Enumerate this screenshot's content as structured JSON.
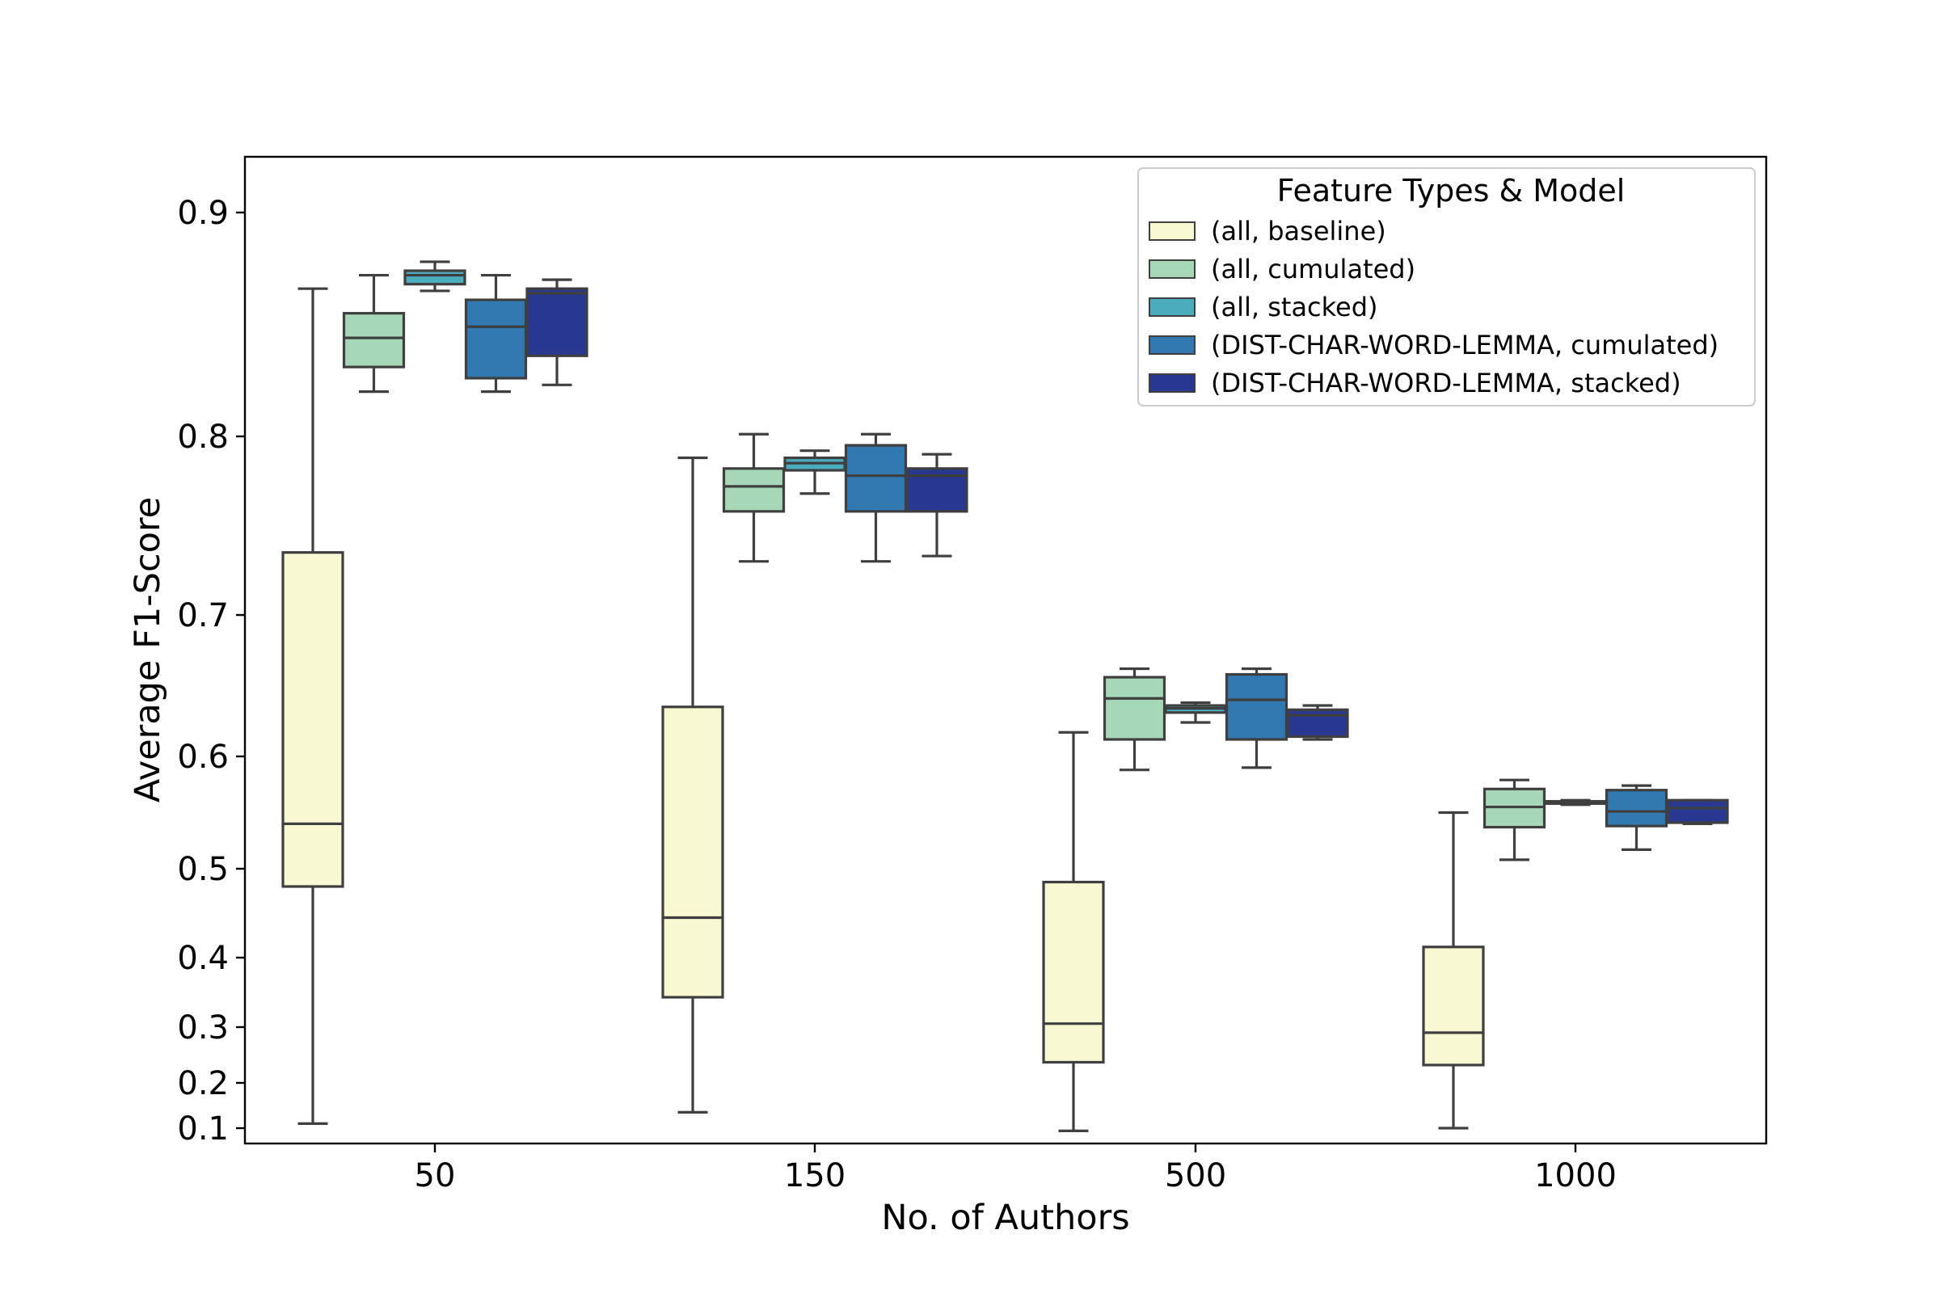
{
  "chart_data": {
    "type": "box",
    "xlabel": "No. of Authors",
    "ylabel": "Average F1-Score",
    "categories": [
      "50",
      "150",
      "500",
      "1000"
    ],
    "y_scale": "nonlinear (ticks unevenly spaced, compressed toward bottom)",
    "y_ticks": [
      0.1,
      0.2,
      0.3,
      0.4,
      0.5,
      0.6,
      0.7,
      0.8,
      0.9
    ],
    "y_tick_labels": [
      "0.1",
      "0.2",
      "0.3",
      "0.4",
      "0.5",
      "0.6",
      "0.7",
      "0.8",
      "0.9"
    ],
    "ylim": [
      0.09,
      0.925
    ],
    "grid": false,
    "legend": {
      "title": "Feature Types & Model",
      "position": "top-right"
    },
    "series": [
      {
        "name": "(all, baseline)",
        "color": "#f8f8d3",
        "boxes": [
          {
            "whislo": 0.11,
            "q1": 0.48,
            "med": 0.54,
            "q3": 0.735,
            "whishi": 0.866
          },
          {
            "whislo": 0.135,
            "q1": 0.343,
            "med": 0.445,
            "q3": 0.635,
            "whishi": 0.788
          },
          {
            "whislo": 0.098,
            "q1": 0.237,
            "med": 0.305,
            "q3": 0.485,
            "whishi": 0.617
          },
          {
            "whislo": 0.1,
            "q1": 0.232,
            "med": 0.29,
            "q3": 0.412,
            "whishi": 0.55
          }
        ]
      },
      {
        "name": "(all, cumulated)",
        "color": "#a6d8b7",
        "boxes": [
          {
            "whislo": 0.82,
            "q1": 0.831,
            "med": 0.844,
            "q3": 0.855,
            "whishi": 0.872
          },
          {
            "whislo": 0.73,
            "q1": 0.758,
            "med": 0.772,
            "q3": 0.782,
            "whishi": 0.801
          },
          {
            "whislo": 0.588,
            "q1": 0.612,
            "med": 0.641,
            "q3": 0.656,
            "whishi": 0.662
          },
          {
            "whislo": 0.508,
            "q1": 0.537,
            "med": 0.555,
            "q3": 0.571,
            "whishi": 0.579
          }
        ]
      },
      {
        "name": "(all, stacked)",
        "color": "#4aacbd",
        "boxes": [
          {
            "whislo": 0.865,
            "q1": 0.868,
            "med": 0.872,
            "q3": 0.874,
            "whishi": 0.878
          },
          {
            "whislo": 0.768,
            "q1": 0.781,
            "med": 0.785,
            "q3": 0.788,
            "whishi": 0.792
          },
          {
            "whislo": 0.624,
            "q1": 0.631,
            "med": 0.634,
            "q3": 0.636,
            "whishi": 0.638
          },
          {
            "whislo": 0.557,
            "q1": 0.558,
            "med": 0.559,
            "q3": 0.56,
            "whishi": 0.561
          }
        ]
      },
      {
        "name": "(DIST-CHAR-WORD-LEMMA, cumulated)",
        "color": "#3179b0",
        "boxes": [
          {
            "whislo": 0.82,
            "q1": 0.826,
            "med": 0.849,
            "q3": 0.861,
            "whishi": 0.872
          },
          {
            "whislo": 0.73,
            "q1": 0.758,
            "med": 0.778,
            "q3": 0.795,
            "whishi": 0.801
          },
          {
            "whislo": 0.59,
            "q1": 0.612,
            "med": 0.64,
            "q3": 0.658,
            "whishi": 0.662
          },
          {
            "whislo": 0.517,
            "q1": 0.538,
            "med": 0.551,
            "q3": 0.57,
            "whishi": 0.574
          }
        ]
      },
      {
        "name": "(DIST-CHAR-WORD-LEMMA, stacked)",
        "color": "#283891",
        "boxes": [
          {
            "whislo": 0.823,
            "q1": 0.836,
            "med": 0.864,
            "q3": 0.866,
            "whishi": 0.87
          },
          {
            "whislo": 0.733,
            "q1": 0.758,
            "med": 0.778,
            "q3": 0.782,
            "whishi": 0.79
          },
          {
            "whislo": 0.612,
            "q1": 0.614,
            "med": 0.629,
            "q3": 0.633,
            "whishi": 0.636
          },
          {
            "whislo": 0.54,
            "q1": 0.541,
            "med": 0.554,
            "q3": 0.561,
            "whishi": 0.561
          }
        ]
      }
    ]
  }
}
